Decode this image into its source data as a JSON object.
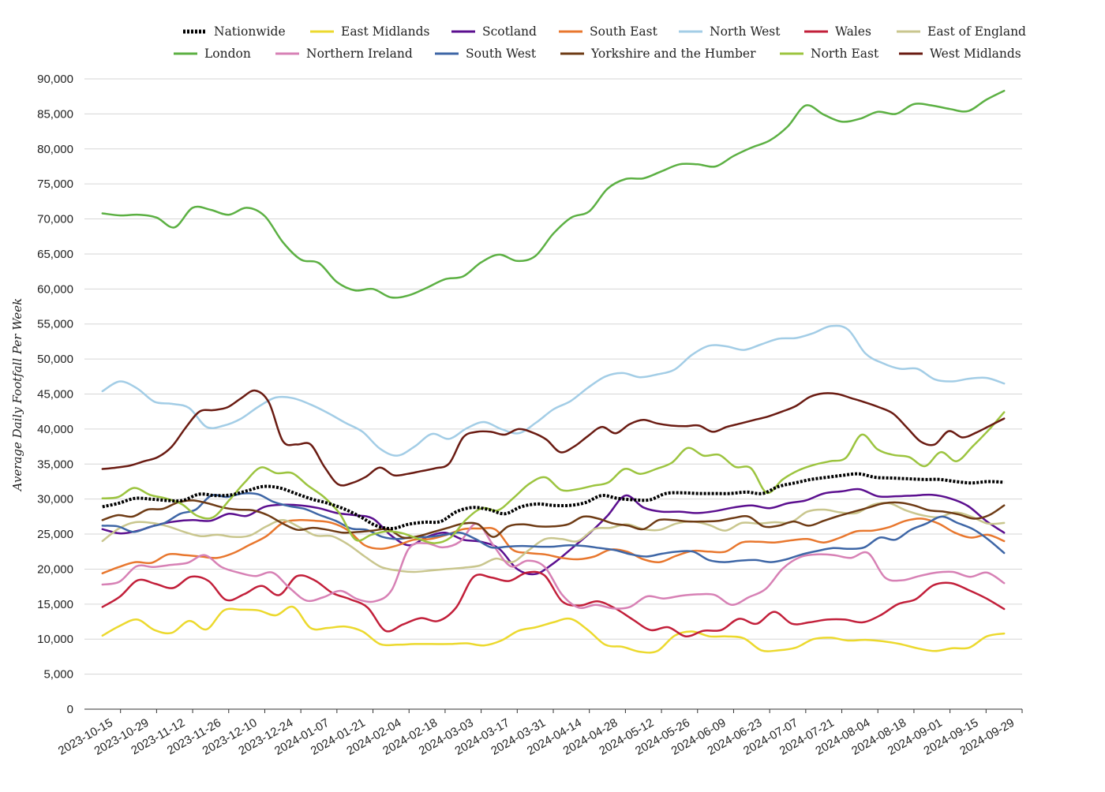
{
  "chart_data": {
    "type": "line",
    "title": "",
    "xlabel": "",
    "ylabel": "Average Daily Footfall Per Week",
    "ylim": [
      0,
      90000
    ],
    "yticks": [
      0,
      5000,
      10000,
      15000,
      20000,
      25000,
      30000,
      35000,
      40000,
      45000,
      50000,
      55000,
      60000,
      65000,
      70000,
      75000,
      80000,
      85000,
      90000
    ],
    "ytick_labels": [
      "0",
      "5,000",
      "10,000",
      "15,000",
      "20,000",
      "25,000",
      "30,000",
      "35,000",
      "40,000",
      "45,000",
      "50,000",
      "55,000",
      "60,000",
      "65,000",
      "70,000",
      "75,000",
      "80,000",
      "85,000",
      "90,000"
    ],
    "x_tick_labels": [
      "2023-10-15",
      "2023-10-29",
      "2023-11-12",
      "2023-11-26",
      "2023-12-10",
      "2023-12-24",
      "2024-01-07",
      "2024-01-21",
      "2024-02-04",
      "2024-02-18",
      "2024-03-03",
      "2024-03-17",
      "2024-03-31",
      "2024-04-14",
      "2024-04-28",
      "2024-05-12",
      "2024-05-26",
      "2024-06-09",
      "2024-06-23",
      "2024-07-07",
      "2024-07-21",
      "2024-08-04",
      "2024-08-18",
      "2024-09-01",
      "2024-09-15",
      "2024-09-29"
    ],
    "x_start": "2023-10-15",
    "x_step_days": 7,
    "grid": "horizontal",
    "legend_position": "top",
    "series": [
      {
        "name": "Nationwide",
        "color": "#000000",
        "dashed": true,
        "values": [
          28900,
          29400,
          30100,
          30000,
          29800,
          29800,
          30700,
          30500,
          30600,
          31200,
          31800,
          31600,
          30800,
          30000,
          29400,
          28600,
          27500,
          26200,
          25800,
          26400,
          26700,
          26800,
          28200,
          28800,
          28500,
          27900,
          28900,
          29300,
          29100,
          29100,
          29500,
          30500,
          30100,
          29900,
          29900,
          30800,
          30900,
          30800,
          30800,
          30800,
          31000,
          30800,
          31800,
          32300,
          32800,
          33100,
          33400,
          33600,
          33100,
          33000,
          32900,
          32800,
          32800,
          32500,
          32300,
          32500,
          32400
        ]
      },
      {
        "name": "East Midlands",
        "color": "#ecd92e",
        "values": [
          10500,
          11900,
          12800,
          11300,
          10900,
          12600,
          11400,
          14100,
          14200,
          14100,
          13400,
          14600,
          11600,
          11600,
          11800,
          11100,
          9300,
          9200,
          9300,
          9300,
          9300,
          9400,
          9100,
          9800,
          11200,
          11700,
          12400,
          12900,
          11300,
          9200,
          8900,
          8200,
          8300,
          10500,
          11100,
          10400,
          10400,
          10100,
          8400,
          8400,
          8800,
          10000,
          10200,
          9800,
          9900,
          9700,
          9300,
          8700,
          8300,
          8700,
          8800,
          10400,
          10800
        ]
      },
      {
        "name": "Scotland",
        "color": "#5b0f8f",
        "values": [
          25700,
          25100,
          25500,
          26300,
          26800,
          27000,
          26900,
          27900,
          27600,
          28900,
          29200,
          29100,
          28700,
          28000,
          27700,
          27200,
          24800,
          23400,
          24600,
          25200,
          24200,
          23900,
          22900,
          20000,
          19300,
          20800,
          22900,
          25100,
          27600,
          30500,
          28800,
          28200,
          28200,
          28000,
          28300,
          28800,
          29100,
          28700,
          29400,
          29800,
          30800,
          31100,
          31400,
          30400,
          30400,
          30500,
          30600,
          30100,
          29000,
          26900,
          25200
        ]
      },
      {
        "name": "South East",
        "color": "#e8772e",
        "values": [
          19400,
          20300,
          21000,
          20900,
          22100,
          22000,
          21800,
          21600,
          22300,
          23500,
          24700,
          26600,
          27000,
          26900,
          26600,
          25500,
          23400,
          22900,
          23400,
          24200,
          24300,
          24900,
          25700,
          25800,
          25600,
          22800,
          22300,
          22100,
          21600,
          21400,
          21800,
          22800,
          22500,
          21400,
          21000,
          21900,
          22600,
          22500,
          22500,
          23800,
          23900,
          23800,
          24100,
          24300,
          23800,
          24500,
          25400,
          25500,
          26000,
          26900,
          27200,
          26500,
          25200,
          24500,
          24900,
          24000
        ]
      },
      {
        "name": "North West",
        "color": "#a3cde6",
        "values": [
          45400,
          46800,
          45800,
          43900,
          43600,
          43000,
          40300,
          40500,
          41500,
          43200,
          44500,
          44400,
          43500,
          42300,
          40900,
          39600,
          37200,
          36200,
          37500,
          39300,
          38600,
          40100,
          41000,
          40000,
          39400,
          40900,
          42800,
          44000,
          45900,
          47500,
          48000,
          47400,
          47800,
          48500,
          50600,
          51900,
          51800,
          51300,
          52100,
          52900,
          53000,
          53700,
          54700,
          54200,
          50800,
          49400,
          48600,
          48600,
          47100,
          46800,
          47200,
          47300,
          46500
        ]
      },
      {
        "name": "Wales",
        "color": "#c21f3a",
        "values": [
          14600,
          16100,
          18400,
          17900,
          17300,
          18900,
          18300,
          15600,
          16400,
          17600,
          16300,
          19000,
          18400,
          16600,
          15700,
          14500,
          11200,
          12100,
          13000,
          12600,
          14500,
          18900,
          18800,
          18300,
          19500,
          19100,
          15400,
          14800,
          15400,
          14400,
          12800,
          11300,
          11700,
          10400,
          11200,
          11300,
          12900,
          12200,
          13900,
          12200,
          12400,
          12800,
          12800,
          12400,
          13400,
          15000,
          15700,
          17700,
          18000,
          17000,
          15800,
          14300
        ]
      },
      {
        "name": "East of England",
        "color": "#c9c68e",
        "values": [
          24000,
          25800,
          26700,
          26600,
          26100,
          25300,
          24700,
          24900,
          24600,
          24800,
          26100,
          27000,
          26000,
          24800,
          24700,
          23500,
          21800,
          20300,
          19800,
          19600,
          19800,
          20000,
          20200,
          20500,
          21500,
          21000,
          22700,
          24300,
          24300,
          24000,
          25700,
          25900,
          26400,
          25700,
          25600,
          26500,
          26800,
          26300,
          25500,
          26600,
          26500,
          26700,
          26700,
          28200,
          28500,
          28100,
          28000,
          29200,
          29400,
          28400,
          27700,
          27400,
          28100,
          27500,
          26500,
          26600
        ]
      },
      {
        "name": "London",
        "color": "#5cb043",
        "values": [
          70800,
          70500,
          70600,
          70200,
          68800,
          71600,
          71300,
          70600,
          71600,
          70400,
          66700,
          64200,
          63700,
          61000,
          59800,
          60000,
          58800,
          59100,
          60200,
          61400,
          61800,
          63800,
          64900,
          64000,
          64700,
          67900,
          70200,
          71100,
          74300,
          75700,
          75800,
          76800,
          77800,
          77800,
          77500,
          79000,
          80200,
          81200,
          83200,
          86200,
          84900,
          83900,
          84300,
          85300,
          85000,
          86400,
          86200,
          85700,
          85400,
          87000,
          88300
        ]
      },
      {
        "name": "Northern Ireland",
        "color": "#d781b5",
        "values": [
          17800,
          18200,
          20400,
          20300,
          20600,
          20900,
          22000,
          20300,
          19500,
          19000,
          19500,
          17300,
          15500,
          16000,
          16900,
          15700,
          15400,
          17000,
          22900,
          23700,
          23100,
          23900,
          26500,
          23300,
          20400,
          21200,
          20300,
          16400,
          14500,
          14900,
          14400,
          14600,
          16100,
          15800,
          16200,
          16400,
          16300,
          14900,
          16000,
          17200,
          20100,
          21700,
          22100,
          22000,
          21600,
          22300,
          18800,
          18400,
          19000,
          19500,
          19600,
          18900,
          19500,
          18000
        ]
      },
      {
        "name": "South West",
        "color": "#3e66a6",
        "values": [
          26200,
          26100,
          25300,
          26000,
          26600,
          27900,
          28500,
          30500,
          30300,
          30800,
          30700,
          29600,
          29000,
          28600,
          27700,
          26900,
          25800,
          25600,
          24600,
          24300,
          24600,
          24600,
          24900,
          25200,
          24300,
          23100,
          23200,
          23300,
          23200,
          23200,
          23400,
          23300,
          23000,
          22700,
          22100,
          21800,
          22200,
          22500,
          22500,
          21300,
          21000,
          21200,
          21300,
          21000,
          21400,
          22100,
          22600,
          23000,
          22900,
          23100,
          24500,
          24200,
          25600,
          26500,
          27500,
          26600,
          25700,
          24200,
          22300
        ]
      },
      {
        "name": "Yorkshire and the Humber",
        "color": "#6e3b15",
        "values": [
          27000,
          27700,
          27500,
          28500,
          28600,
          29500,
          29800,
          29400,
          28800,
          28500,
          28400,
          27700,
          26500,
          25600,
          25900,
          25600,
          25200,
          25300,
          25500,
          25700,
          24500,
          24700,
          25300,
          25900,
          26500,
          26400,
          24600,
          26100,
          26400,
          26100,
          26100,
          26400,
          27500,
          27200,
          26500,
          26200,
          25700,
          27000,
          27000,
          26800,
          26800,
          26900,
          27300,
          27500,
          26100,
          26200,
          26800,
          26200,
          26900,
          27600,
          28200,
          28800,
          29400,
          29500,
          29100,
          28400,
          28200,
          27800,
          27200,
          27700,
          29100
        ]
      },
      {
        "name": "North East",
        "color": "#9cc43f",
        "values": [
          30100,
          30300,
          31600,
          30600,
          30100,
          29300,
          27600,
          27400,
          29800,
          32400,
          34500,
          33700,
          33700,
          31900,
          30300,
          27900,
          24200,
          24900,
          25400,
          25100,
          24300,
          23700,
          24500,
          27100,
          28700,
          28400,
          30200,
          32200,
          33100,
          31300,
          31400,
          31900,
          32400,
          34300,
          33600,
          34300,
          35200,
          37300,
          36200,
          36300,
          34600,
          34400,
          30900,
          32800,
          34100,
          34900,
          35400,
          35900,
          39200,
          37100,
          36300,
          36000,
          34700,
          36700,
          35400,
          37500,
          39800,
          42400
        ]
      },
      {
        "name": "West Midlands",
        "color": "#6a1b12",
        "values": [
          34300,
          34500,
          34800,
          35400,
          36000,
          37500,
          40200,
          42500,
          42700,
          43100,
          44400,
          45500,
          43800,
          38300,
          37800,
          37800,
          34600,
          32100,
          32300,
          33200,
          34500,
          33400,
          33600,
          34000,
          34400,
          35100,
          38800,
          39600,
          39600,
          39200,
          40000,
          39500,
          38500,
          36700,
          37500,
          39000,
          40300,
          39400,
          40700,
          41300,
          40800,
          40500,
          40400,
          40500,
          39600,
          40300,
          40800,
          41300,
          41800,
          42500,
          43300,
          44600,
          45100,
          45000,
          44400,
          43800,
          43100,
          42200,
          40200,
          38200,
          37800,
          39700,
          38800,
          39500,
          40500,
          41500
        ]
      }
    ]
  },
  "legend_rows": [
    [
      "Nationwide",
      "East Midlands",
      "Scotland",
      "South East",
      "North West",
      "Wales",
      "East of England"
    ],
    [
      "London",
      "Northern Ireland",
      "South West",
      "Yorkshire and the Humber",
      "North East",
      "West Midlands"
    ]
  ]
}
